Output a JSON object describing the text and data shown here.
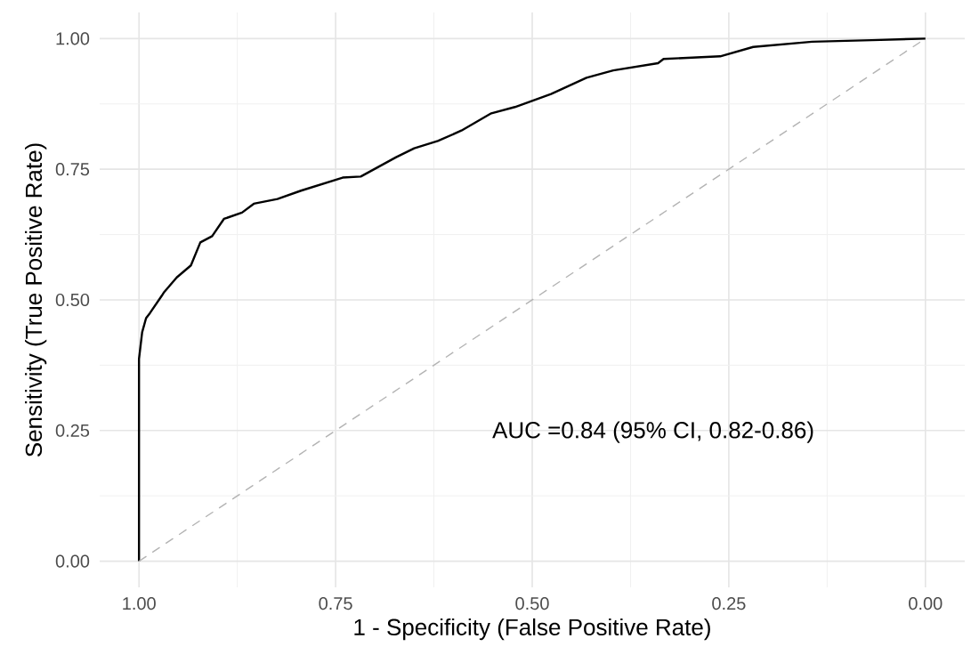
{
  "chart_data": {
    "type": "line",
    "xlabel": "1 - Specificity (False Positive Rate)",
    "ylabel": "Sensitivity (True Positive Rate)",
    "xlim": [
      1.05,
      -0.05
    ],
    "ylim": [
      -0.05,
      1.05
    ],
    "xticks": [
      {
        "value": 1,
        "label": "1.00"
      },
      {
        "value": 0.75,
        "label": "0.75"
      },
      {
        "value": 0.5,
        "label": "0.50"
      },
      {
        "value": 0.25,
        "label": "0.25"
      },
      {
        "value": 0,
        "label": "0.00"
      }
    ],
    "yticks": [
      {
        "value": 0,
        "label": "0.00"
      },
      {
        "value": 0.25,
        "label": "0.25"
      },
      {
        "value": 0.5,
        "label": "0.50"
      },
      {
        "value": 0.75,
        "label": "0.75"
      },
      {
        "value": 1,
        "label": "1.00"
      }
    ],
    "grid": true,
    "annotations": [
      "AUC =0.84 (95% CI, 0.82-0.86)"
    ],
    "series": [
      {
        "color": "#000000",
        "line_style": "solid",
        "x": [
          1.0,
          1.0,
          0.996,
          0.991,
          0.986,
          0.971,
          0.968,
          0.952,
          0.934,
          0.922,
          0.907,
          0.892,
          0.869,
          0.854,
          0.824,
          0.794,
          0.741,
          0.718,
          0.673,
          0.65,
          0.62,
          0.59,
          0.552,
          0.522,
          0.476,
          0.431,
          0.397,
          0.34,
          0.333,
          0.261,
          0.219,
          0.144,
          0.068,
          0.0
        ],
        "values": [
          0.0,
          0.387,
          0.438,
          0.465,
          0.475,
          0.508,
          0.515,
          0.543,
          0.566,
          0.61,
          0.622,
          0.655,
          0.667,
          0.684,
          0.693,
          0.709,
          0.734,
          0.736,
          0.773,
          0.79,
          0.804,
          0.824,
          0.857,
          0.869,
          0.894,
          0.925,
          0.939,
          0.953,
          0.961,
          0.966,
          0.984,
          0.994,
          0.997,
          1.0
        ]
      },
      {
        "color": "#b3b3b3",
        "line_style": "dashed",
        "x": [
          1.0,
          0.0
        ],
        "values": [
          0.0,
          1.0
        ]
      }
    ]
  }
}
